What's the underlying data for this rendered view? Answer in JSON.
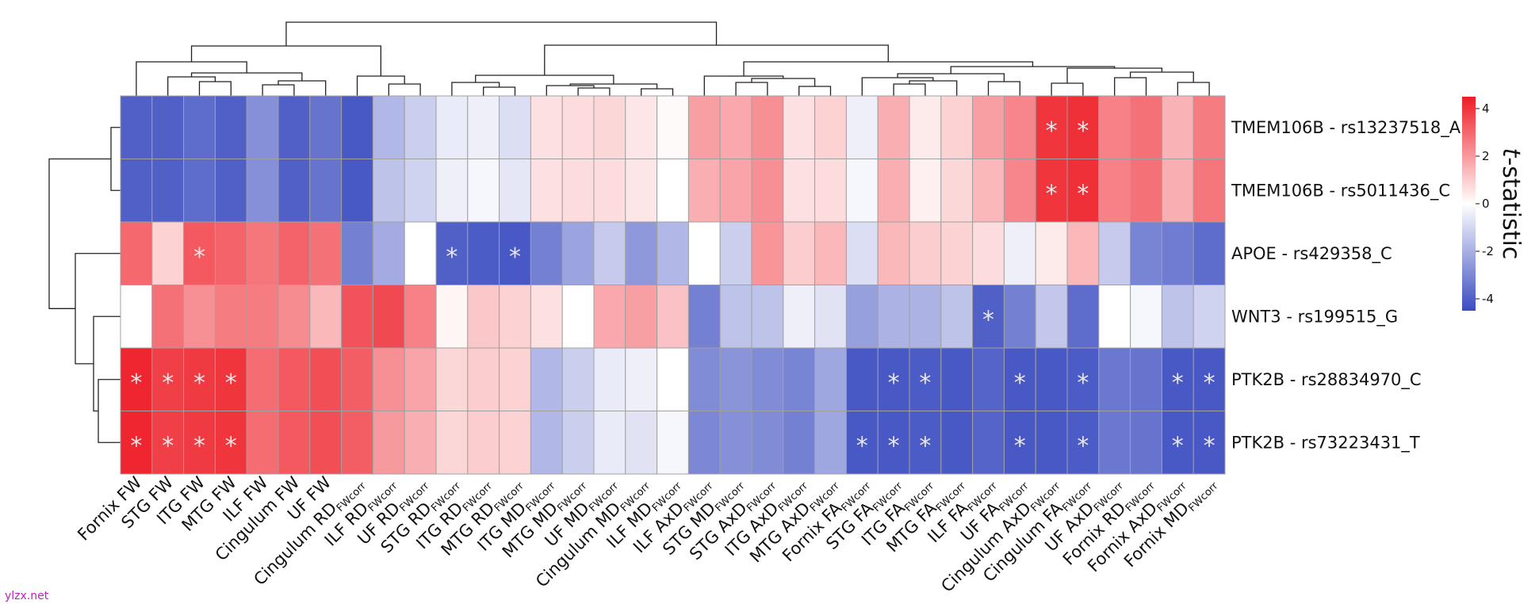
{
  "watermark": "ylzx.net",
  "chart_data": {
    "type": "heatmap",
    "title": "",
    "colorbar": {
      "label_italic": "t",
      "label_rest": "-statistic",
      "range": [
        -4.5,
        4.5
      ],
      "ticks": [
        4,
        2,
        0,
        -2,
        -4
      ],
      "colors": {
        "low": "#3b4cc0",
        "mid": "#ffffff",
        "high": "#ee1c25"
      }
    },
    "columns": [
      {
        "main": "Fornix FW",
        "sub": ""
      },
      {
        "main": "STG FW",
        "sub": ""
      },
      {
        "main": "ITG FW",
        "sub": ""
      },
      {
        "main": "MTG FW",
        "sub": ""
      },
      {
        "main": "ILF FW",
        "sub": ""
      },
      {
        "main": "Cingulum FW",
        "sub": ""
      },
      {
        "main": "UF FW",
        "sub": ""
      },
      {
        "main": "Cingulum RD",
        "sub": "FWcorr"
      },
      {
        "main": "ILF RD",
        "sub": "FWcorr"
      },
      {
        "main": "UF RD",
        "sub": "FWcorr"
      },
      {
        "main": "STG RD",
        "sub": "FWcorr"
      },
      {
        "main": "ITG RD",
        "sub": "FWcorr"
      },
      {
        "main": "MTG RD",
        "sub": "FWcorr"
      },
      {
        "main": "ITG MD",
        "sub": "FWcorr"
      },
      {
        "main": "MTG MD",
        "sub": "FWcorr"
      },
      {
        "main": "UF MD",
        "sub": "FWcorr"
      },
      {
        "main": "Cingulum MD",
        "sub": "FWcorr"
      },
      {
        "main": "ILF MD",
        "sub": "FWcorr"
      },
      {
        "main": "ILF AxD",
        "sub": "FWcorr"
      },
      {
        "main": "STG MD",
        "sub": "FWcorr"
      },
      {
        "main": "STG AxD",
        "sub": "FWcorr"
      },
      {
        "main": "ITG AxD",
        "sub": "FWcorr"
      },
      {
        "main": "MTG AxD",
        "sub": "FWcorr"
      },
      {
        "main": "Fornix FA",
        "sub": "FWcorr"
      },
      {
        "main": "STG FA",
        "sub": "FWcorr"
      },
      {
        "main": "ITG FA",
        "sub": "FWcorr"
      },
      {
        "main": "MTG FA",
        "sub": "FWcorr"
      },
      {
        "main": "ILF FA",
        "sub": "FWcorr"
      },
      {
        "main": "UF FA",
        "sub": "FWcorr"
      },
      {
        "main": "Cingulum AxD",
        "sub": "FWcorr"
      },
      {
        "main": "Cingulum FA",
        "sub": "FWcorr"
      },
      {
        "main": "UF AxD",
        "sub": "FWcorr"
      },
      {
        "main": "Fornix RD",
        "sub": "FWcorr"
      },
      {
        "main": "Fornix AxD",
        "sub": "FWcorr"
      },
      {
        "main": "Fornix MD",
        "sub": "FWcorr"
      }
    ],
    "rows": [
      "TMEM106B - rs13237518_A",
      "TMEM106B - rs5011436_C",
      "APOE - rs429358_C",
      "WNT3 - rs199515_G",
      "PTK2B - rs28834970_C",
      "PTK2B - rs73223431_T"
    ],
    "values": [
      [
        -4.0,
        -4.0,
        -3.7,
        -4.0,
        -2.8,
        -4.0,
        -3.5,
        -4.2,
        -1.8,
        -1.2,
        -0.5,
        -0.4,
        -0.8,
        0.6,
        0.7,
        0.8,
        0.5,
        0.1,
        1.9,
        1.7,
        2.2,
        0.6,
        0.9,
        -0.4,
        1.6,
        0.4,
        0.9,
        1.9,
        2.4,
        4.0,
        4.1,
        2.5,
        2.8,
        1.5,
        2.6
      ],
      [
        -4.0,
        -4.0,
        -3.7,
        -4.0,
        -2.8,
        -4.0,
        -3.5,
        -4.2,
        -1.5,
        -1.1,
        -0.4,
        -0.2,
        -0.6,
        0.6,
        0.7,
        0.7,
        0.5,
        0.0,
        1.6,
        1.8,
        2.2,
        0.6,
        0.7,
        -0.2,
        1.6,
        0.3,
        0.8,
        1.4,
        2.4,
        4.0,
        4.1,
        2.5,
        2.8,
        1.6,
        2.7
      ],
      [
        3.0,
        0.9,
        3.3,
        3.1,
        2.7,
        3.1,
        2.8,
        -3.2,
        -2.1,
        0.0,
        -4.0,
        -4.1,
        -4.2,
        -3.2,
        -2.3,
        -1.3,
        -2.6,
        -1.8,
        0.0,
        -1.2,
        2.1,
        1.0,
        1.4,
        -0.8,
        1.4,
        1.0,
        0.9,
        0.7,
        -0.4,
        0.4,
        1.4,
        -1.3,
        -3.1,
        -3.3,
        -3.7
      ],
      [
        0.0,
        2.8,
        2.2,
        2.6,
        2.6,
        2.3,
        1.4,
        3.4,
        3.6,
        2.5,
        0.2,
        1.1,
        0.9,
        0.6,
        0.0,
        1.7,
        1.9,
        1.2,
        -3.2,
        -1.5,
        -1.5,
        -0.4,
        -0.7,
        -2.4,
        -1.9,
        -1.9,
        -1.5,
        -4.0,
        -3.2,
        -1.4,
        -3.7,
        0.0,
        -0.2,
        -1.5,
        -1.1
      ],
      [
        4.3,
        3.8,
        3.9,
        4.0,
        2.9,
        3.3,
        3.5,
        3.2,
        2.2,
        1.8,
        0.8,
        1.0,
        0.9,
        -1.8,
        -1.2,
        -0.5,
        -0.4,
        0.0,
        -2.9,
        -2.7,
        -2.9,
        -3.1,
        -2.2,
        -4.2,
        -4.2,
        -4.1,
        -4.2,
        -3.9,
        -4.2,
        -4.2,
        -4.1,
        -3.4,
        -3.5,
        -4.2,
        -4.2
      ],
      [
        4.3,
        3.8,
        3.9,
        4.0,
        2.9,
        3.3,
        3.5,
        3.2,
        2.0,
        1.6,
        0.8,
        1.0,
        0.9,
        -1.8,
        -1.2,
        -0.5,
        -0.7,
        -0.2,
        -3.0,
        -2.8,
        -2.9,
        -3.2,
        -2.2,
        -4.2,
        -4.2,
        -4.1,
        -4.2,
        -3.9,
        -4.2,
        -4.2,
        -4.1,
        -3.4,
        -3.5,
        -4.2,
        -4.2
      ]
    ],
    "significant": [
      [
        29,
        30
      ],
      [
        29,
        30
      ],
      [
        2,
        10,
        12
      ],
      [
        27
      ],
      [
        0,
        1,
        2,
        3,
        24,
        25,
        28,
        30,
        33,
        34
      ],
      [
        0,
        1,
        2,
        3,
        23,
        24,
        25,
        28,
        30,
        33,
        34
      ]
    ],
    "significance_marker": "*"
  }
}
